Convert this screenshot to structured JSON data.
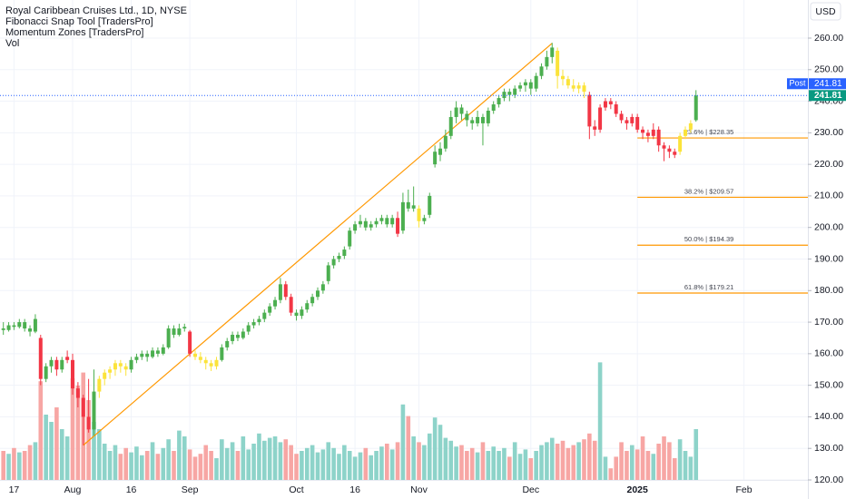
{
  "chart_data": {
    "type": "candlestick",
    "title": "Royal Caribbean Cruises Ltd., 1D, NYSE",
    "indicators": [
      "Fibonacci Snap Tool [TradersPro]",
      "Momentum Zones [TradersPro]",
      "Vol"
    ],
    "currency": "USD",
    "post_label": "Post",
    "last_price": 241.81,
    "ylim": [
      120,
      272.07
    ],
    "yticks": [
      {
        "value": 120,
        "label": "120.00"
      },
      {
        "value": 130,
        "label": "130.00"
      },
      {
        "value": 140,
        "label": "140.00"
      },
      {
        "value": 150,
        "label": "150.00"
      },
      {
        "value": 160,
        "label": "160.00"
      },
      {
        "value": 170,
        "label": "170.00"
      },
      {
        "value": 180,
        "label": "180.00"
      },
      {
        "value": 190,
        "label": "190.00"
      },
      {
        "value": 200,
        "label": "200.00"
      },
      {
        "value": 210,
        "label": "210.00"
      },
      {
        "value": 220,
        "label": "220.00"
      },
      {
        "value": 230,
        "label": "230.00"
      },
      {
        "value": 240,
        "label": "240.00"
      },
      {
        "value": 250,
        "label": "250.00"
      },
      {
        "value": 260,
        "label": "260.00"
      }
    ],
    "xlim": [
      -0.63,
      151
    ],
    "xticks": [
      {
        "value": 2,
        "label": "17"
      },
      {
        "value": 13,
        "label": "Aug"
      },
      {
        "value": 24,
        "label": "16"
      },
      {
        "value": 35,
        "label": "Sep"
      },
      {
        "value": 55,
        "label": "Oct"
      },
      {
        "value": 66,
        "label": "16"
      },
      {
        "value": 78,
        "label": "Nov"
      },
      {
        "value": 99,
        "label": "Dec"
      },
      {
        "value": 119,
        "label": "2025"
      },
      {
        "value": 139,
        "label": "Feb"
      }
    ],
    "grid": true,
    "candles": [
      [
        168,
        170,
        166,
        167.5
      ],
      [
        167.5,
        170,
        167,
        169
      ],
      [
        169,
        170,
        167.5,
        168.5
      ],
      [
        168.5,
        171,
        168,
        170
      ],
      [
        170,
        171,
        167,
        168
      ],
      [
        168,
        169,
        165.5,
        167
      ],
      [
        167,
        172.5,
        166.5,
        171
      ],
      [
        165,
        166,
        150,
        152
      ],
      [
        152,
        157,
        151,
        156
      ],
      [
        156,
        159,
        154,
        158
      ],
      [
        158,
        159,
        153,
        155
      ],
      [
        155,
        159,
        154,
        158
      ],
      [
        158,
        161,
        157,
        159
      ],
      [
        158,
        160,
        147,
        149
      ],
      [
        149,
        151,
        143,
        146
      ],
      [
        146,
        147,
        131,
        140
      ],
      [
        140,
        152,
        135,
        136
      ],
      [
        136,
        155,
        134,
        148
      ],
      [
        148,
        153,
        146,
        152
      ],
      [
        152,
        155,
        150,
        154
      ],
      [
        154,
        156,
        152,
        155
      ],
      [
        155,
        158,
        153,
        157
      ],
      [
        157,
        158,
        154,
        156
      ],
      [
        156,
        157,
        153,
        155
      ],
      [
        155,
        159,
        154,
        158
      ],
      [
        158,
        160,
        157,
        159
      ],
      [
        159,
        161,
        158,
        160
      ],
      [
        160,
        161,
        157.5,
        159
      ],
      [
        159,
        162,
        158.5,
        161
      ],
      [
        161,
        162,
        159,
        160
      ],
      [
        160,
        163,
        159.5,
        162
      ],
      [
        162,
        169,
        161.5,
        168
      ],
      [
        168,
        169,
        165,
        166
      ],
      [
        166,
        169.5,
        165.5,
        168
      ],
      [
        168,
        169.5,
        167,
        168.5
      ],
      [
        167,
        167.5,
        159,
        160
      ],
      [
        160,
        161,
        158,
        159
      ],
      [
        159,
        160.5,
        157,
        158
      ],
      [
        158,
        159,
        155,
        157
      ],
      [
        157,
        158,
        154.5,
        156
      ],
      [
        156,
        159,
        155,
        158
      ],
      [
        158,
        163,
        157.5,
        162
      ],
      [
        162,
        165,
        161,
        164
      ],
      [
        164,
        167,
        163,
        166
      ],
      [
        166,
        167,
        164,
        165
      ],
      [
        165,
        168,
        164.5,
        167
      ],
      [
        167,
        170,
        166,
        169
      ],
      [
        169,
        171,
        168,
        170
      ],
      [
        170,
        172,
        169,
        171
      ],
      [
        171,
        174,
        170,
        173
      ],
      [
        173,
        176,
        172,
        175
      ],
      [
        175,
        178,
        174,
        177
      ],
      [
        177,
        184,
        176,
        182
      ],
      [
        182,
        183,
        177,
        178
      ],
      [
        178,
        179,
        172,
        173
      ],
      [
        173,
        174,
        170.5,
        172
      ],
      [
        172,
        175,
        171,
        174
      ],
      [
        174,
        177,
        173,
        176
      ],
      [
        176,
        179,
        175,
        178
      ],
      [
        178,
        181,
        177,
        180
      ],
      [
        180,
        183,
        179,
        182
      ],
      [
        183,
        189,
        182,
        188
      ],
      [
        188,
        191,
        187,
        190
      ],
      [
        190,
        192,
        189,
        191
      ],
      [
        191,
        194,
        190,
        193
      ],
      [
        194,
        200,
        193,
        199
      ],
      [
        199,
        202,
        198,
        201
      ],
      [
        201,
        204,
        200,
        202
      ],
      [
        202,
        203,
        199,
        200
      ],
      [
        200,
        202,
        199,
        201
      ],
      [
        201,
        203,
        200,
        202
      ],
      [
        202,
        204,
        201,
        203
      ],
      [
        203,
        204,
        200,
        201
      ],
      [
        201,
        204,
        200,
        203
      ],
      [
        203,
        205,
        197,
        198
      ],
      [
        199,
        211,
        198,
        208
      ],
      [
        208,
        212,
        205,
        206
      ],
      [
        206,
        213,
        205,
        207
      ],
      [
        206,
        207,
        200,
        202
      ],
      [
        202,
        204,
        201,
        203
      ],
      [
        204,
        211,
        203,
        210
      ],
      [
        220,
        226,
        219,
        224
      ],
      [
        223,
        227,
        221,
        225
      ],
      [
        225,
        231,
        224,
        229
      ],
      [
        229,
        237,
        228,
        235
      ],
      [
        235,
        240,
        233,
        238
      ],
      [
        238,
        239,
        234,
        236
      ],
      [
        236,
        237,
        232,
        234
      ],
      [
        234,
        235,
        231,
        233
      ],
      [
        233,
        237,
        232,
        235
      ],
      [
        235,
        236,
        226,
        233
      ],
      [
        233,
        238,
        232,
        237
      ],
      [
        237,
        240,
        236,
        239
      ],
      [
        239,
        242,
        238,
        241
      ],
      [
        241,
        244,
        240,
        243
      ],
      [
        243,
        244,
        240,
        242
      ],
      [
        242,
        245,
        241,
        244
      ],
      [
        244,
        246,
        243,
        245
      ],
      [
        245,
        247,
        243,
        246
      ],
      [
        246,
        247,
        242,
        244
      ],
      [
        244,
        249,
        243,
        248
      ],
      [
        248,
        252,
        247,
        251
      ],
      [
        251,
        256,
        250,
        254
      ],
      [
        254,
        258.5,
        252,
        257
      ],
      [
        256,
        257,
        244,
        248
      ],
      [
        248,
        250,
        245,
        247
      ],
      [
        247,
        248,
        244,
        245
      ],
      [
        245,
        247,
        243,
        244
      ],
      [
        244,
        246,
        242.5,
        245
      ],
      [
        245,
        246,
        241,
        243
      ],
      [
        242,
        243,
        228,
        232
      ],
      [
        232,
        234,
        229,
        231
      ],
      [
        231,
        239,
        230,
        238
      ],
      [
        238,
        241,
        237,
        240
      ],
      [
        240,
        241,
        237.5,
        239
      ],
      [
        239,
        240,
        235,
        236
      ],
      [
        236,
        237,
        233,
        234
      ],
      [
        234,
        235,
        231,
        233
      ],
      [
        233,
        236,
        232,
        235
      ],
      [
        235,
        236,
        230,
        231
      ],
      [
        231,
        232,
        228,
        230
      ],
      [
        230,
        231,
        227,
        229
      ],
      [
        229,
        233,
        228,
        231
      ],
      [
        231,
        232,
        224,
        226
      ],
      [
        226,
        227,
        221,
        225
      ],
      [
        225,
        226,
        222,
        224
      ],
      [
        224,
        225,
        222,
        223
      ],
      [
        224,
        230,
        223,
        229
      ],
      [
        229,
        232,
        228,
        231
      ],
      [
        231,
        234,
        230,
        233
      ],
      [
        234,
        243.5,
        233.5,
        241.81
      ]
    ],
    "candle_colors": [
      "#4caf50",
      "#4caf50",
      "#4caf50",
      "#4caf50",
      "#4caf50",
      "#4caf50",
      "#4caf50",
      "#f23645",
      "#4caf50",
      "#4caf50",
      "#f23645",
      "#4caf50",
      "#f23645",
      "#f23645",
      "#f23645",
      "#f23645",
      "#f23645",
      "#4caf50",
      "#fbe33a",
      "#fbe33a",
      "#fbe33a",
      "#fbe33a",
      "#fbe33a",
      "#fbe33a",
      "#4caf50",
      "#4caf50",
      "#4caf50",
      "#4caf50",
      "#4caf50",
      "#4caf50",
      "#4caf50",
      "#4caf50",
      "#4caf50",
      "#4caf50",
      "#4caf50",
      "#f23645",
      "#fbe33a",
      "#fbe33a",
      "#fbe33a",
      "#fbe33a",
      "#fbe33a",
      "#4caf50",
      "#4caf50",
      "#4caf50",
      "#4caf50",
      "#4caf50",
      "#4caf50",
      "#4caf50",
      "#4caf50",
      "#4caf50",
      "#4caf50",
      "#4caf50",
      "#4caf50",
      "#f23645",
      "#f23645",
      "#4caf50",
      "#4caf50",
      "#4caf50",
      "#4caf50",
      "#4caf50",
      "#4caf50",
      "#4caf50",
      "#4caf50",
      "#4caf50",
      "#4caf50",
      "#4caf50",
      "#4caf50",
      "#4caf50",
      "#4caf50",
      "#4caf50",
      "#4caf50",
      "#4caf50",
      "#4caf50",
      "#4caf50",
      "#f23645",
      "#4caf50",
      "#4caf50",
      "#4caf50",
      "#fbe33a",
      "#4caf50",
      "#4caf50",
      "#4caf50",
      "#4caf50",
      "#4caf50",
      "#4caf50",
      "#4caf50",
      "#4caf50",
      "#4caf50",
      "#4caf50",
      "#4caf50",
      "#4caf50",
      "#4caf50",
      "#4caf50",
      "#4caf50",
      "#4caf50",
      "#4caf50",
      "#4caf50",
      "#4caf50",
      "#4caf50",
      "#4caf50",
      "#4caf50",
      "#4caf50",
      "#4caf50",
      "#4caf50",
      "#fbe33a",
      "#fbe33a",
      "#fbe33a",
      "#fbe33a",
      "#fbe33a",
      "#fbe33a",
      "#f23645",
      "#f23645",
      "#f23645",
      "#f23645",
      "#f23645",
      "#f23645",
      "#f23645",
      "#f23645",
      "#f23645",
      "#f23645",
      "#f23645",
      "#f23645",
      "#f23645",
      "#f23645",
      "#f23645",
      "#f23645",
      "#f23645",
      "#fbe33a",
      "#fbe33a",
      "#fbe33a",
      "#4caf50"
    ],
    "volume": [
      2.0,
      1.8,
      2.2,
      1.9,
      2.0,
      2.4,
      2.6,
      6.8,
      4.5,
      4.0,
      5.0,
      3.5,
      3.0,
      7.0,
      6.5,
      7.4,
      5.5,
      4.0,
      3.5,
      2.5,
      2.0,
      2.4,
      1.8,
      2.2,
      1.9,
      2.3,
      1.7,
      2.0,
      2.6,
      1.8,
      2.2,
      2.8,
      2.0,
      3.4,
      3.0,
      2.1,
      1.6,
      1.8,
      2.4,
      2.0,
      1.5,
      2.8,
      2.2,
      2.6,
      2.0,
      3.0,
      2.1,
      2.5,
      3.2,
      2.7,
      2.9,
      3.0,
      2.6,
      2.8,
      2.4,
      1.8,
      2.0,
      2.2,
      2.4,
      1.9,
      2.1,
      2.6,
      2.2,
      1.8,
      2.4,
      2.0,
      1.6,
      1.9,
      2.2,
      1.7,
      2.0,
      2.3,
      2.5,
      2.1,
      2.6,
      5.2,
      4.4,
      3.0,
      2.6,
      2.4,
      3.2,
      4.3,
      3.8,
      2.9,
      2.7,
      2.3,
      2.4,
      2.0,
      2.2,
      1.9,
      2.6,
      2.0,
      2.3,
      2.0,
      2.2,
      1.6,
      2.6,
      1.8,
      2.1,
      1.5,
      2.0,
      2.4,
      2.6,
      2.9,
      2.5,
      2.7,
      2.2,
      2.4,
      2.6,
      2.8,
      3.2,
      2.7,
      8.1,
      1.6,
      0.8,
      1.6,
      2.6,
      2.0,
      2.4,
      2.1,
      3.0,
      2.0,
      1.8,
      2.5,
      3.0,
      2.6,
      1.5,
      2.8,
      2.0,
      1.6,
      3.5
    ],
    "volume_up_color": "#8dd3c9",
    "volume_down_color": "#f7a6a4",
    "fib_color": "#ff9800",
    "fib_start": 119,
    "fib_levels": [
      {
        "value": 228.35,
        "label": "23.6% | $228.35"
      },
      {
        "value": 209.57,
        "label": "38.2% | $209.57"
      },
      {
        "value": 194.39,
        "label": "50.0% | $194.39"
      },
      {
        "value": 179.21,
        "label": "61.8% | $179.21"
      }
    ],
    "trendline": {
      "x": [
        15,
        103
      ],
      "y": [
        131,
        258.35
      ],
      "color": "#ff9800"
    }
  }
}
